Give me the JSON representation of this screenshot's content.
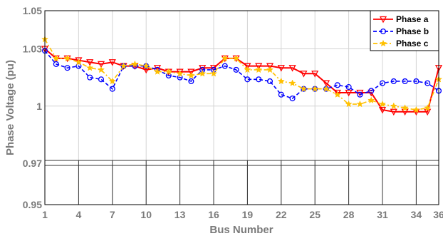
{
  "chart_data": {
    "type": "line",
    "title": "",
    "xlabel": "Bus Number",
    "ylabel": "Phase Voltage (pu)",
    "xlim": [
      1,
      36
    ],
    "ylim": [
      0.95,
      1.05
    ],
    "xticks": [
      1,
      4,
      7,
      10,
      13,
      16,
      19,
      22,
      25,
      28,
      31,
      34,
      36
    ],
    "yticks": [
      {
        "value": 0.95,
        "label": "0.95"
      },
      {
        "value": 0.97,
        "label": "0.97"
      },
      {
        "value": 1.0,
        "label": "1"
      },
      {
        "value": 1.03,
        "label": "1.03"
      },
      {
        "value": 1.05,
        "label": "1.05"
      }
    ],
    "grid": true,
    "legend_position": "top-right",
    "x": [
      1,
      2,
      3,
      4,
      5,
      6,
      7,
      8,
      9,
      10,
      11,
      12,
      13,
      14,
      15,
      16,
      17,
      18,
      19,
      20,
      21,
      22,
      23,
      24,
      25,
      26,
      27,
      28,
      29,
      30,
      31,
      32,
      33,
      34,
      35,
      36
    ],
    "series": [
      {
        "name": "Phase a",
        "color": "#ff0000",
        "marker": "triangle-down",
        "line_style": "solid",
        "values": [
          1.03,
          1.025,
          1.025,
          1.024,
          1.023,
          1.022,
          1.023,
          1.021,
          1.021,
          1.019,
          1.02,
          1.018,
          1.018,
          1.018,
          1.02,
          1.02,
          1.025,
          1.025,
          1.021,
          1.021,
          1.021,
          1.02,
          1.02,
          1.017,
          1.017,
          1.012,
          1.007,
          1.007,
          1.007,
          1.007,
          0.998,
          0.997,
          0.997,
          0.997,
          0.997,
          1.02
        ]
      },
      {
        "name": "Phase b",
        "color": "#0000ff",
        "marker": "circle",
        "line_style": "dashed",
        "values": [
          1.029,
          1.022,
          1.02,
          1.021,
          1.015,
          1.014,
          1.009,
          1.021,
          1.021,
          1.021,
          1.019,
          1.016,
          1.015,
          1.013,
          1.019,
          1.019,
          1.021,
          1.019,
          1.014,
          1.014,
          1.013,
          1.006,
          1.004,
          1.009,
          1.009,
          1.009,
          1.011,
          1.01,
          1.006,
          1.008,
          1.012,
          1.013,
          1.013,
          1.013,
          1.012,
          1.008
        ]
      },
      {
        "name": "Phase c",
        "color": "#ffc000",
        "marker": "star",
        "line_style": "dash-dot",
        "values": [
          1.035,
          1.025,
          1.025,
          1.023,
          1.02,
          1.019,
          1.013,
          1.021,
          1.022,
          1.021,
          1.018,
          1.018,
          1.017,
          1.016,
          1.017,
          1.017,
          1.025,
          1.025,
          1.019,
          1.019,
          1.019,
          1.013,
          1.012,
          1.009,
          1.009,
          1.009,
          1.006,
          1.001,
          1.001,
          1.003,
          1.001,
          1.0,
          0.999,
          0.998,
          0.999,
          1.014
        ]
      }
    ]
  }
}
